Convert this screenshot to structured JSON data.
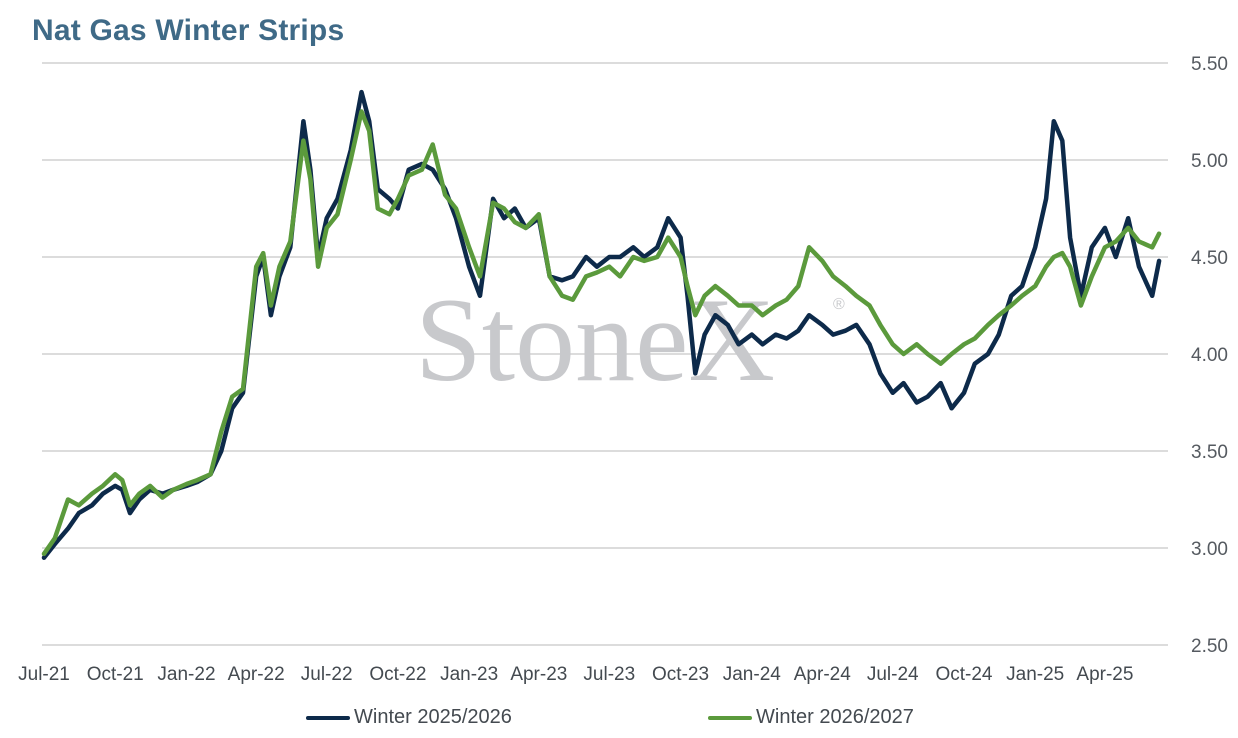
{
  "title": "Nat Gas Winter Strips",
  "watermark": "StoneX",
  "watermark_mark": "®",
  "colors": {
    "series1": "#0d2a4a",
    "series2": "#5b9a3c",
    "grid": "#d0d0d0",
    "title": "#3f6a87"
  },
  "chart_data": {
    "type": "line",
    "title": "Nat Gas Winter Strips",
    "xlabel": "",
    "ylabel": "",
    "ylim": [
      2.5,
      5.5
    ],
    "yticks": [
      "5.50",
      "5.00",
      "4.50",
      "4.00",
      "3.50",
      "3.00",
      "2.50"
    ],
    "grid": true,
    "legend_position": "bottom",
    "x_tick_labels": [
      "Jul-21",
      "Oct-21",
      "Jan-22",
      "Apr-22",
      "Jul-22",
      "Oct-22",
      "Jan-23",
      "Apr-23",
      "Jul-23",
      "Oct-23",
      "Jan-24",
      "Apr-24",
      "Jul-24",
      "Oct-24",
      "Jan-25",
      "Apr-25"
    ],
    "x_range": [
      "2021-07-01",
      "2025-06-15"
    ],
    "series": [
      {
        "name": "Winter 2025/2026",
        "color": "#0d2a4a",
        "points": [
          [
            "2021-07-01",
            2.95
          ],
          [
            "2021-07-15",
            3.02
          ],
          [
            "2021-08-01",
            3.1
          ],
          [
            "2021-08-15",
            3.18
          ],
          [
            "2021-09-01",
            3.22
          ],
          [
            "2021-09-15",
            3.28
          ],
          [
            "2021-10-01",
            3.32
          ],
          [
            "2021-10-10",
            3.3
          ],
          [
            "2021-10-20",
            3.18
          ],
          [
            "2021-11-01",
            3.25
          ],
          [
            "2021-11-15",
            3.3
          ],
          [
            "2021-12-01",
            3.28
          ],
          [
            "2021-12-15",
            3.3
          ],
          [
            "2022-01-01",
            3.32
          ],
          [
            "2022-01-15",
            3.34
          ],
          [
            "2022-02-01",
            3.38
          ],
          [
            "2022-02-15",
            3.5
          ],
          [
            "2022-03-01",
            3.72
          ],
          [
            "2022-03-15",
            3.8
          ],
          [
            "2022-04-01",
            4.4
          ],
          [
            "2022-04-10",
            4.5
          ],
          [
            "2022-04-20",
            4.2
          ],
          [
            "2022-05-01",
            4.4
          ],
          [
            "2022-05-15",
            4.55
          ],
          [
            "2022-06-01",
            5.2
          ],
          [
            "2022-06-10",
            4.95
          ],
          [
            "2022-06-20",
            4.5
          ],
          [
            "2022-07-01",
            4.7
          ],
          [
            "2022-07-15",
            4.8
          ],
          [
            "2022-08-01",
            5.05
          ],
          [
            "2022-08-15",
            5.35
          ],
          [
            "2022-08-25",
            5.2
          ],
          [
            "2022-09-05",
            4.85
          ],
          [
            "2022-09-20",
            4.8
          ],
          [
            "2022-10-01",
            4.75
          ],
          [
            "2022-10-15",
            4.95
          ],
          [
            "2022-11-01",
            4.98
          ],
          [
            "2022-11-15",
            4.95
          ],
          [
            "2022-12-01",
            4.85
          ],
          [
            "2022-12-15",
            4.7
          ],
          [
            "2023-01-01",
            4.45
          ],
          [
            "2023-01-15",
            4.3
          ],
          [
            "2023-02-01",
            4.8
          ],
          [
            "2023-02-15",
            4.7
          ],
          [
            "2023-03-01",
            4.75
          ],
          [
            "2023-03-15",
            4.65
          ],
          [
            "2023-04-01",
            4.7
          ],
          [
            "2023-04-15",
            4.4
          ],
          [
            "2023-05-01",
            4.38
          ],
          [
            "2023-05-15",
            4.4
          ],
          [
            "2023-06-01",
            4.5
          ],
          [
            "2023-06-15",
            4.45
          ],
          [
            "2023-07-01",
            4.5
          ],
          [
            "2023-07-15",
            4.5
          ],
          [
            "2023-08-01",
            4.55
          ],
          [
            "2023-08-15",
            4.5
          ],
          [
            "2023-09-01",
            4.55
          ],
          [
            "2023-09-15",
            4.7
          ],
          [
            "2023-10-01",
            4.6
          ],
          [
            "2023-10-10",
            4.3
          ],
          [
            "2023-10-20",
            3.9
          ],
          [
            "2023-11-01",
            4.1
          ],
          [
            "2023-11-15",
            4.2
          ],
          [
            "2023-12-01",
            4.15
          ],
          [
            "2023-12-15",
            4.05
          ],
          [
            "2024-01-01",
            4.1
          ],
          [
            "2024-01-15",
            4.05
          ],
          [
            "2024-02-01",
            4.1
          ],
          [
            "2024-02-15",
            4.08
          ],
          [
            "2024-03-01",
            4.12
          ],
          [
            "2024-03-15",
            4.2
          ],
          [
            "2024-04-01",
            4.15
          ],
          [
            "2024-04-15",
            4.1
          ],
          [
            "2024-05-01",
            4.12
          ],
          [
            "2024-05-15",
            4.15
          ],
          [
            "2024-06-01",
            4.05
          ],
          [
            "2024-06-15",
            3.9
          ],
          [
            "2024-07-01",
            3.8
          ],
          [
            "2024-07-15",
            3.85
          ],
          [
            "2024-08-01",
            3.75
          ],
          [
            "2024-08-15",
            3.78
          ],
          [
            "2024-09-01",
            3.85
          ],
          [
            "2024-09-15",
            3.72
          ],
          [
            "2024-10-01",
            3.8
          ],
          [
            "2024-10-15",
            3.95
          ],
          [
            "2024-11-01",
            4.0
          ],
          [
            "2024-11-15",
            4.1
          ],
          [
            "2024-12-01",
            4.3
          ],
          [
            "2024-12-15",
            4.35
          ],
          [
            "2025-01-01",
            4.55
          ],
          [
            "2025-01-15",
            4.8
          ],
          [
            "2025-01-25",
            5.2
          ],
          [
            "2025-02-05",
            5.1
          ],
          [
            "2025-02-15",
            4.6
          ],
          [
            "2025-03-01",
            4.3
          ],
          [
            "2025-03-15",
            4.55
          ],
          [
            "2025-04-01",
            4.65
          ],
          [
            "2025-04-15",
            4.5
          ],
          [
            "2025-05-01",
            4.7
          ],
          [
            "2025-05-15",
            4.45
          ],
          [
            "2025-06-01",
            4.3
          ],
          [
            "2025-06-10",
            4.48
          ]
        ]
      },
      {
        "name": "Winter 2026/2027",
        "color": "#5b9a3c",
        "points": [
          [
            "2021-07-01",
            2.97
          ],
          [
            "2021-07-15",
            3.05
          ],
          [
            "2021-08-01",
            3.25
          ],
          [
            "2021-08-15",
            3.22
          ],
          [
            "2021-09-01",
            3.28
          ],
          [
            "2021-09-15",
            3.32
          ],
          [
            "2021-10-01",
            3.38
          ],
          [
            "2021-10-10",
            3.35
          ],
          [
            "2021-10-20",
            3.22
          ],
          [
            "2021-11-01",
            3.28
          ],
          [
            "2021-11-15",
            3.32
          ],
          [
            "2021-12-01",
            3.26
          ],
          [
            "2021-12-15",
            3.3
          ],
          [
            "2022-01-01",
            3.33
          ],
          [
            "2022-01-15",
            3.35
          ],
          [
            "2022-02-01",
            3.38
          ],
          [
            "2022-02-15",
            3.6
          ],
          [
            "2022-03-01",
            3.78
          ],
          [
            "2022-03-15",
            3.82
          ],
          [
            "2022-04-01",
            4.45
          ],
          [
            "2022-04-10",
            4.52
          ],
          [
            "2022-04-20",
            4.25
          ],
          [
            "2022-05-01",
            4.45
          ],
          [
            "2022-05-15",
            4.58
          ],
          [
            "2022-06-01",
            5.1
          ],
          [
            "2022-06-10",
            4.9
          ],
          [
            "2022-06-20",
            4.45
          ],
          [
            "2022-07-01",
            4.65
          ],
          [
            "2022-07-15",
            4.72
          ],
          [
            "2022-08-01",
            5.0
          ],
          [
            "2022-08-15",
            5.25
          ],
          [
            "2022-08-25",
            5.15
          ],
          [
            "2022-09-05",
            4.75
          ],
          [
            "2022-09-20",
            4.72
          ],
          [
            "2022-10-01",
            4.8
          ],
          [
            "2022-10-15",
            4.92
          ],
          [
            "2022-11-01",
            4.95
          ],
          [
            "2022-11-15",
            5.08
          ],
          [
            "2022-12-01",
            4.82
          ],
          [
            "2022-12-15",
            4.75
          ],
          [
            "2023-01-01",
            4.55
          ],
          [
            "2023-01-15",
            4.4
          ],
          [
            "2023-02-01",
            4.78
          ],
          [
            "2023-02-15",
            4.75
          ],
          [
            "2023-03-01",
            4.68
          ],
          [
            "2023-03-15",
            4.65
          ],
          [
            "2023-04-01",
            4.72
          ],
          [
            "2023-04-15",
            4.4
          ],
          [
            "2023-05-01",
            4.3
          ],
          [
            "2023-05-15",
            4.28
          ],
          [
            "2023-06-01",
            4.4
          ],
          [
            "2023-06-15",
            4.42
          ],
          [
            "2023-07-01",
            4.45
          ],
          [
            "2023-07-15",
            4.4
          ],
          [
            "2023-08-01",
            4.5
          ],
          [
            "2023-08-15",
            4.48
          ],
          [
            "2023-09-01",
            4.5
          ],
          [
            "2023-09-15",
            4.6
          ],
          [
            "2023-10-01",
            4.5
          ],
          [
            "2023-10-10",
            4.35
          ],
          [
            "2023-10-20",
            4.2
          ],
          [
            "2023-11-01",
            4.3
          ],
          [
            "2023-11-15",
            4.35
          ],
          [
            "2023-12-01",
            4.3
          ],
          [
            "2023-12-15",
            4.25
          ],
          [
            "2024-01-01",
            4.25
          ],
          [
            "2024-01-15",
            4.2
          ],
          [
            "2024-02-01",
            4.25
          ],
          [
            "2024-02-15",
            4.28
          ],
          [
            "2024-03-01",
            4.35
          ],
          [
            "2024-03-15",
            4.55
          ],
          [
            "2024-04-01",
            4.48
          ],
          [
            "2024-04-15",
            4.4
          ],
          [
            "2024-05-01",
            4.35
          ],
          [
            "2024-05-15",
            4.3
          ],
          [
            "2024-06-01",
            4.25
          ],
          [
            "2024-06-15",
            4.15
          ],
          [
            "2024-07-01",
            4.05
          ],
          [
            "2024-07-15",
            4.0
          ],
          [
            "2024-08-01",
            4.05
          ],
          [
            "2024-08-15",
            4.0
          ],
          [
            "2024-09-01",
            3.95
          ],
          [
            "2024-09-15",
            4.0
          ],
          [
            "2024-10-01",
            4.05
          ],
          [
            "2024-10-15",
            4.08
          ],
          [
            "2024-11-01",
            4.15
          ],
          [
            "2024-11-15",
            4.2
          ],
          [
            "2024-12-01",
            4.25
          ],
          [
            "2024-12-15",
            4.3
          ],
          [
            "2025-01-01",
            4.35
          ],
          [
            "2025-01-15",
            4.45
          ],
          [
            "2025-01-25",
            4.5
          ],
          [
            "2025-02-05",
            4.52
          ],
          [
            "2025-02-15",
            4.45
          ],
          [
            "2025-03-01",
            4.25
          ],
          [
            "2025-03-15",
            4.4
          ],
          [
            "2025-04-01",
            4.55
          ],
          [
            "2025-04-15",
            4.58
          ],
          [
            "2025-05-01",
            4.65
          ],
          [
            "2025-05-15",
            4.58
          ],
          [
            "2025-06-01",
            4.55
          ],
          [
            "2025-06-10",
            4.62
          ]
        ]
      }
    ]
  }
}
